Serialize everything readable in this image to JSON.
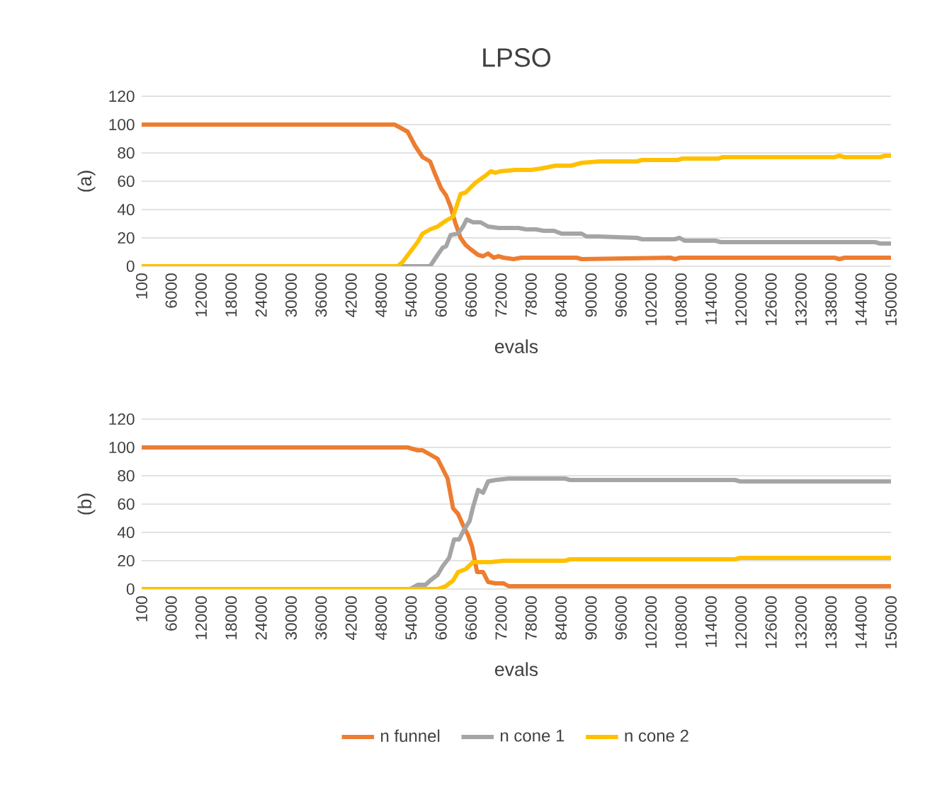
{
  "chart_data": [
    {
      "type": "line",
      "title": "LPSO",
      "xlabel": "evals",
      "ylabel": "(a)",
      "xlim": [
        100,
        150000
      ],
      "xticks": [
        100,
        6000,
        12000,
        18000,
        24000,
        30000,
        36000,
        42000,
        48000,
        54000,
        60000,
        66000,
        72000,
        78000,
        84000,
        90000,
        96000,
        102000,
        108000,
        114000,
        120000,
        126000,
        132000,
        138000,
        144000,
        150000
      ],
      "ylim": [
        0,
        120
      ],
      "yticks": [
        0,
        20,
        40,
        60,
        80,
        100,
        120
      ],
      "grid": "y",
      "marker": "none",
      "line_style": "solid",
      "series": [
        {
          "color": "#ed7d31",
          "x": [
            100,
            50700,
            53300,
            54800,
            56300,
            57800,
            58800,
            60000,
            61000,
            61900,
            62900,
            63900,
            64900,
            65900,
            67400,
            68400,
            69400,
            70500,
            71500,
            72500,
            74500,
            76000,
            87100,
            88100,
            105800,
            106800,
            107800,
            138700,
            139700,
            140700,
            150000
          ],
          "values": [
            100,
            100,
            95,
            85,
            77,
            74,
            65,
            55,
            50,
            42,
            30,
            20,
            15,
            12,
            8,
            7,
            9,
            6,
            7,
            6,
            5,
            6,
            6,
            5,
            6,
            5,
            6,
            6,
            5,
            6,
            6
          ]
        },
        {
          "color": "#a5a5a5",
          "x": [
            100,
            57800,
            59300,
            60300,
            61000,
            61900,
            63400,
            64400,
            65100,
            66400,
            67900,
            69400,
            71500,
            75500,
            77000,
            79000,
            80500,
            82600,
            84100,
            88100,
            89100,
            91200,
            99200,
            100200,
            106700,
            107700,
            108700,
            114900,
            115900,
            146800,
            147800,
            150000
          ],
          "values": [
            0,
            0,
            8,
            13,
            14,
            22,
            23,
            28,
            33,
            31,
            31,
            28,
            27,
            27,
            26,
            26,
            25,
            25,
            23,
            23,
            21,
            21,
            20,
            19,
            19,
            20,
            18,
            18,
            17,
            17,
            16,
            16
          ]
        },
        {
          "color": "#ffc000",
          "x": [
            100,
            51300,
            52300,
            53800,
            55300,
            56300,
            57800,
            59300,
            60900,
            62400,
            63900,
            64900,
            66900,
            68900,
            69900,
            70900,
            71800,
            74800,
            78000,
            80000,
            82900,
            86000,
            88100,
            91700,
            99200,
            100200,
            107300,
            108300,
            115400,
            116400,
            138700,
            139700,
            140700,
            147800,
            148800,
            150000
          ],
          "values": [
            0,
            0,
            3,
            10,
            17,
            23,
            26,
            28,
            32,
            35,
            51,
            52,
            59,
            64,
            67,
            66,
            67,
            68,
            68,
            69,
            71,
            71,
            73,
            74,
            74,
            75,
            75,
            76,
            76,
            77,
            77,
            78,
            77,
            77,
            78,
            78
          ]
        }
      ]
    },
    {
      "type": "line",
      "xlabel": "evals",
      "ylabel": "(b)",
      "xlim": [
        100,
        150000
      ],
      "xticks": [
        100,
        6000,
        12000,
        18000,
        24000,
        30000,
        36000,
        42000,
        48000,
        54000,
        60000,
        66000,
        72000,
        78000,
        84000,
        90000,
        96000,
        102000,
        108000,
        114000,
        120000,
        126000,
        132000,
        138000,
        144000,
        150000
      ],
      "ylim": [
        0,
        120
      ],
      "yticks": [
        0,
        20,
        40,
        60,
        80,
        100,
        120
      ],
      "grid": "y",
      "marker": "none",
      "line_style": "solid",
      "legend": "bottom",
      "series": [
        {
          "name": "n funnel",
          "color": "#ed7d31",
          "x": [
            100,
            53300,
            55300,
            56300,
            57800,
            59300,
            60300,
            61300,
            62400,
            63400,
            64400,
            65400,
            66200,
            67200,
            68400,
            69400,
            70900,
            72500,
            73500,
            150000
          ],
          "values": [
            100,
            100,
            98,
            98,
            95,
            92,
            85,
            78,
            57,
            53,
            45,
            38,
            30,
            12,
            12,
            5,
            4,
            4,
            2,
            2
          ]
        },
        {
          "name": "n cone 1",
          "color": "#a5a5a5",
          "x": [
            100,
            53800,
            55300,
            56900,
            57800,
            59300,
            60300,
            61600,
            62600,
            63600,
            64600,
            65700,
            66400,
            67400,
            68400,
            69400,
            70900,
            73500,
            84800,
            85800,
            118800,
            119800,
            150000
          ],
          "values": [
            0,
            0,
            3,
            3,
            6,
            10,
            16,
            22,
            35,
            35,
            42,
            48,
            58,
            70,
            68,
            76,
            77,
            78,
            78,
            77,
            77,
            76,
            76
          ]
        },
        {
          "name": "n cone 2",
          "color": "#ffc000",
          "x": [
            100,
            59300,
            60900,
            62400,
            63400,
            64900,
            66400,
            68400,
            69900,
            72500,
            84800,
            85800,
            118800,
            119800,
            150000
          ],
          "values": [
            0,
            0,
            2,
            6,
            12,
            14,
            19,
            19,
            19,
            20,
            20,
            21,
            21,
            22,
            22
          ]
        }
      ]
    }
  ]
}
